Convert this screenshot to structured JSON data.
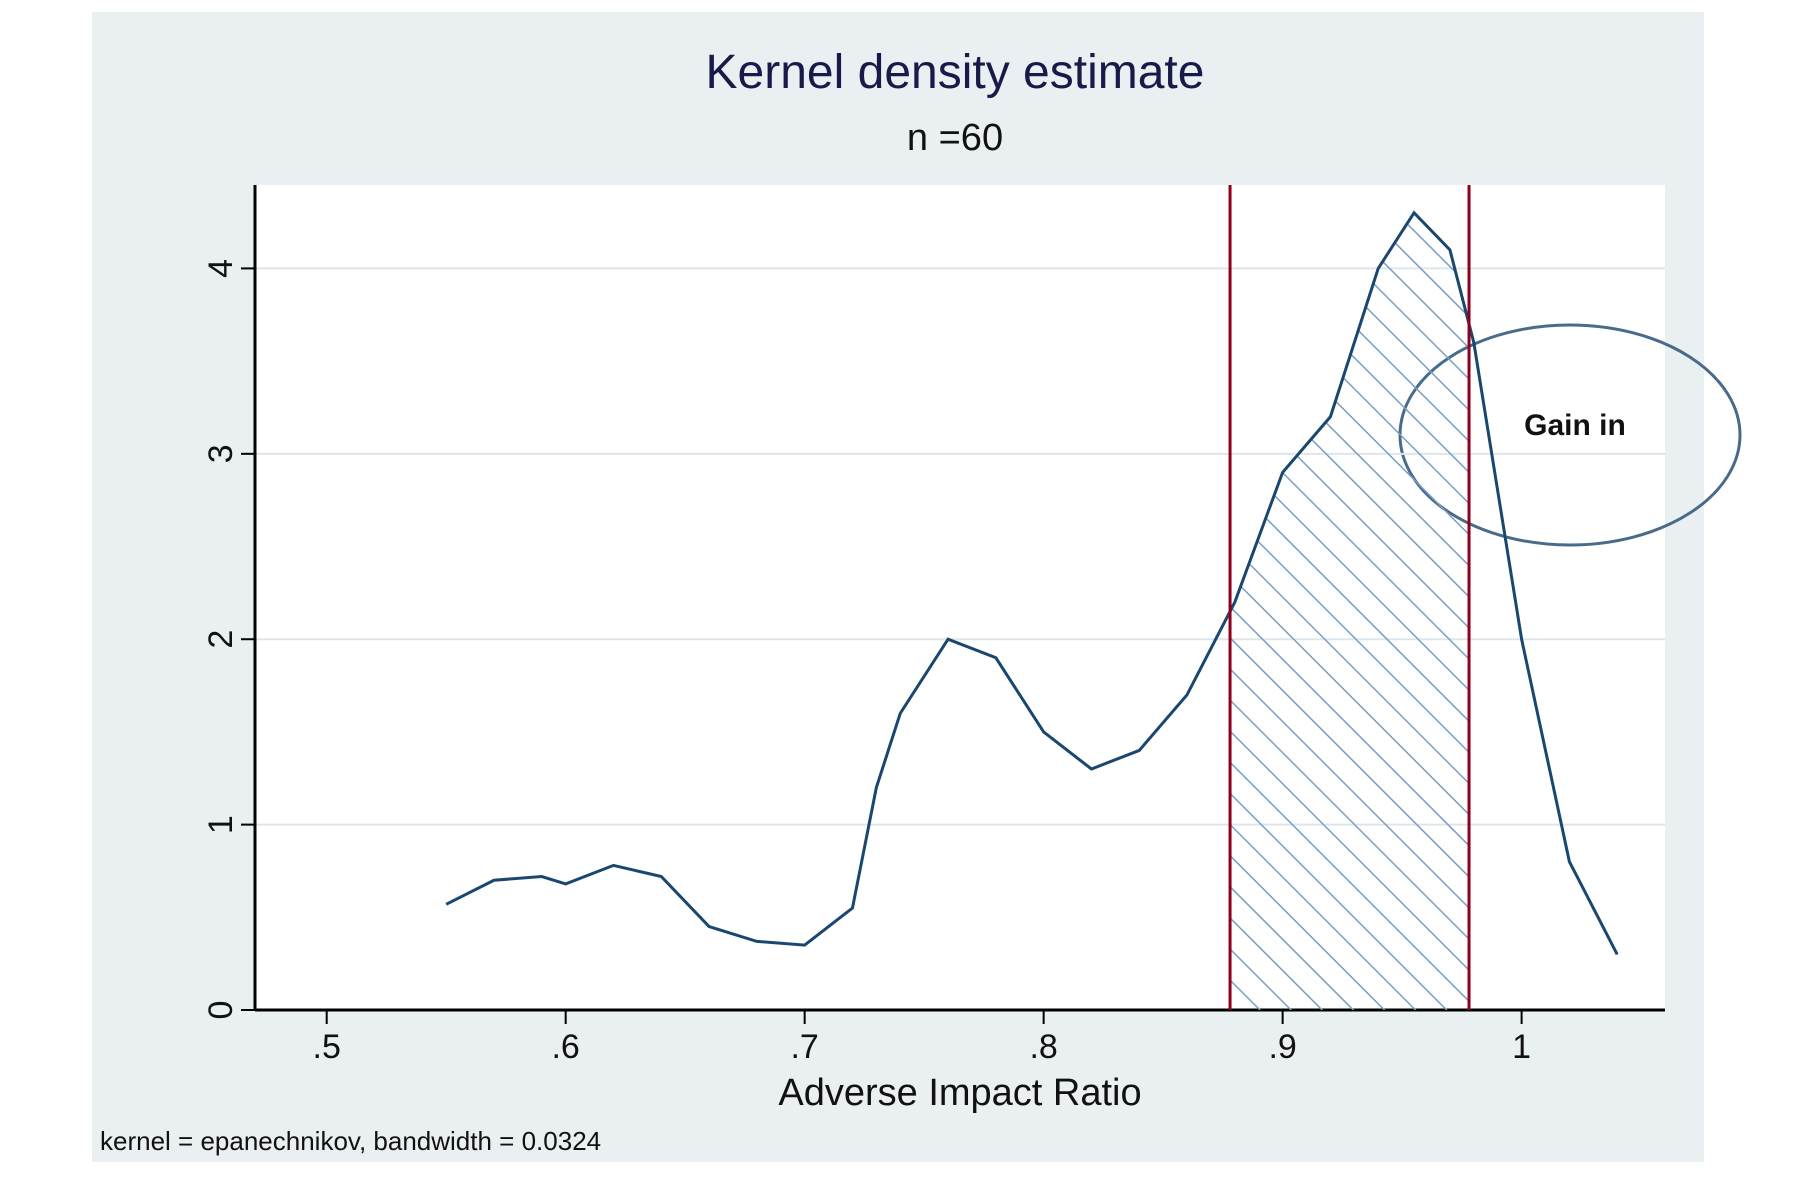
{
  "chart_data": {
    "type": "line",
    "title": "Kernel density estimate",
    "subtitle": "n =60",
    "x_label": "Adverse Impact Ratio",
    "note": "kernel = epanechnikov, bandwidth = 0.0324",
    "annotation": "Gain in",
    "x": [
      0.55,
      0.57,
      0.59,
      0.6,
      0.62,
      0.64,
      0.66,
      0.68,
      0.7,
      0.72,
      0.73,
      0.74,
      0.76,
      0.78,
      0.8,
      0.82,
      0.84,
      0.86,
      0.88,
      0.9,
      0.92,
      0.94,
      0.955,
      0.97,
      0.98,
      1.0,
      1.02,
      1.04
    ],
    "series": [
      {
        "color": "#1a476f",
        "values": [
          0.57,
          0.7,
          0.72,
          0.68,
          0.78,
          0.72,
          0.45,
          0.37,
          0.35,
          0.55,
          1.2,
          1.6,
          2.0,
          1.9,
          1.5,
          1.3,
          1.4,
          1.7,
          2.2,
          2.9,
          3.2,
          4.0,
          4.3,
          4.1,
          3.6,
          2.0,
          0.8,
          0.3
        ]
      }
    ],
    "reference_lines": {
      "color": "#90001c",
      "x": [
        0.878,
        0.978
      ]
    },
    "xlim": [
      0.47,
      1.06
    ],
    "ylim": [
      0,
      4.45
    ],
    "xticks": [
      {
        "value": 0.5,
        "label": ".5"
      },
      {
        "value": 0.6,
        "label": ".6"
      },
      {
        "value": 0.7,
        "label": ".7"
      },
      {
        "value": 0.8,
        "label": ".8"
      },
      {
        "value": 0.9,
        "label": ".9"
      },
      1
    ],
    "yticks": [
      0,
      1,
      2,
      3,
      4
    ],
    "grid": true
  }
}
